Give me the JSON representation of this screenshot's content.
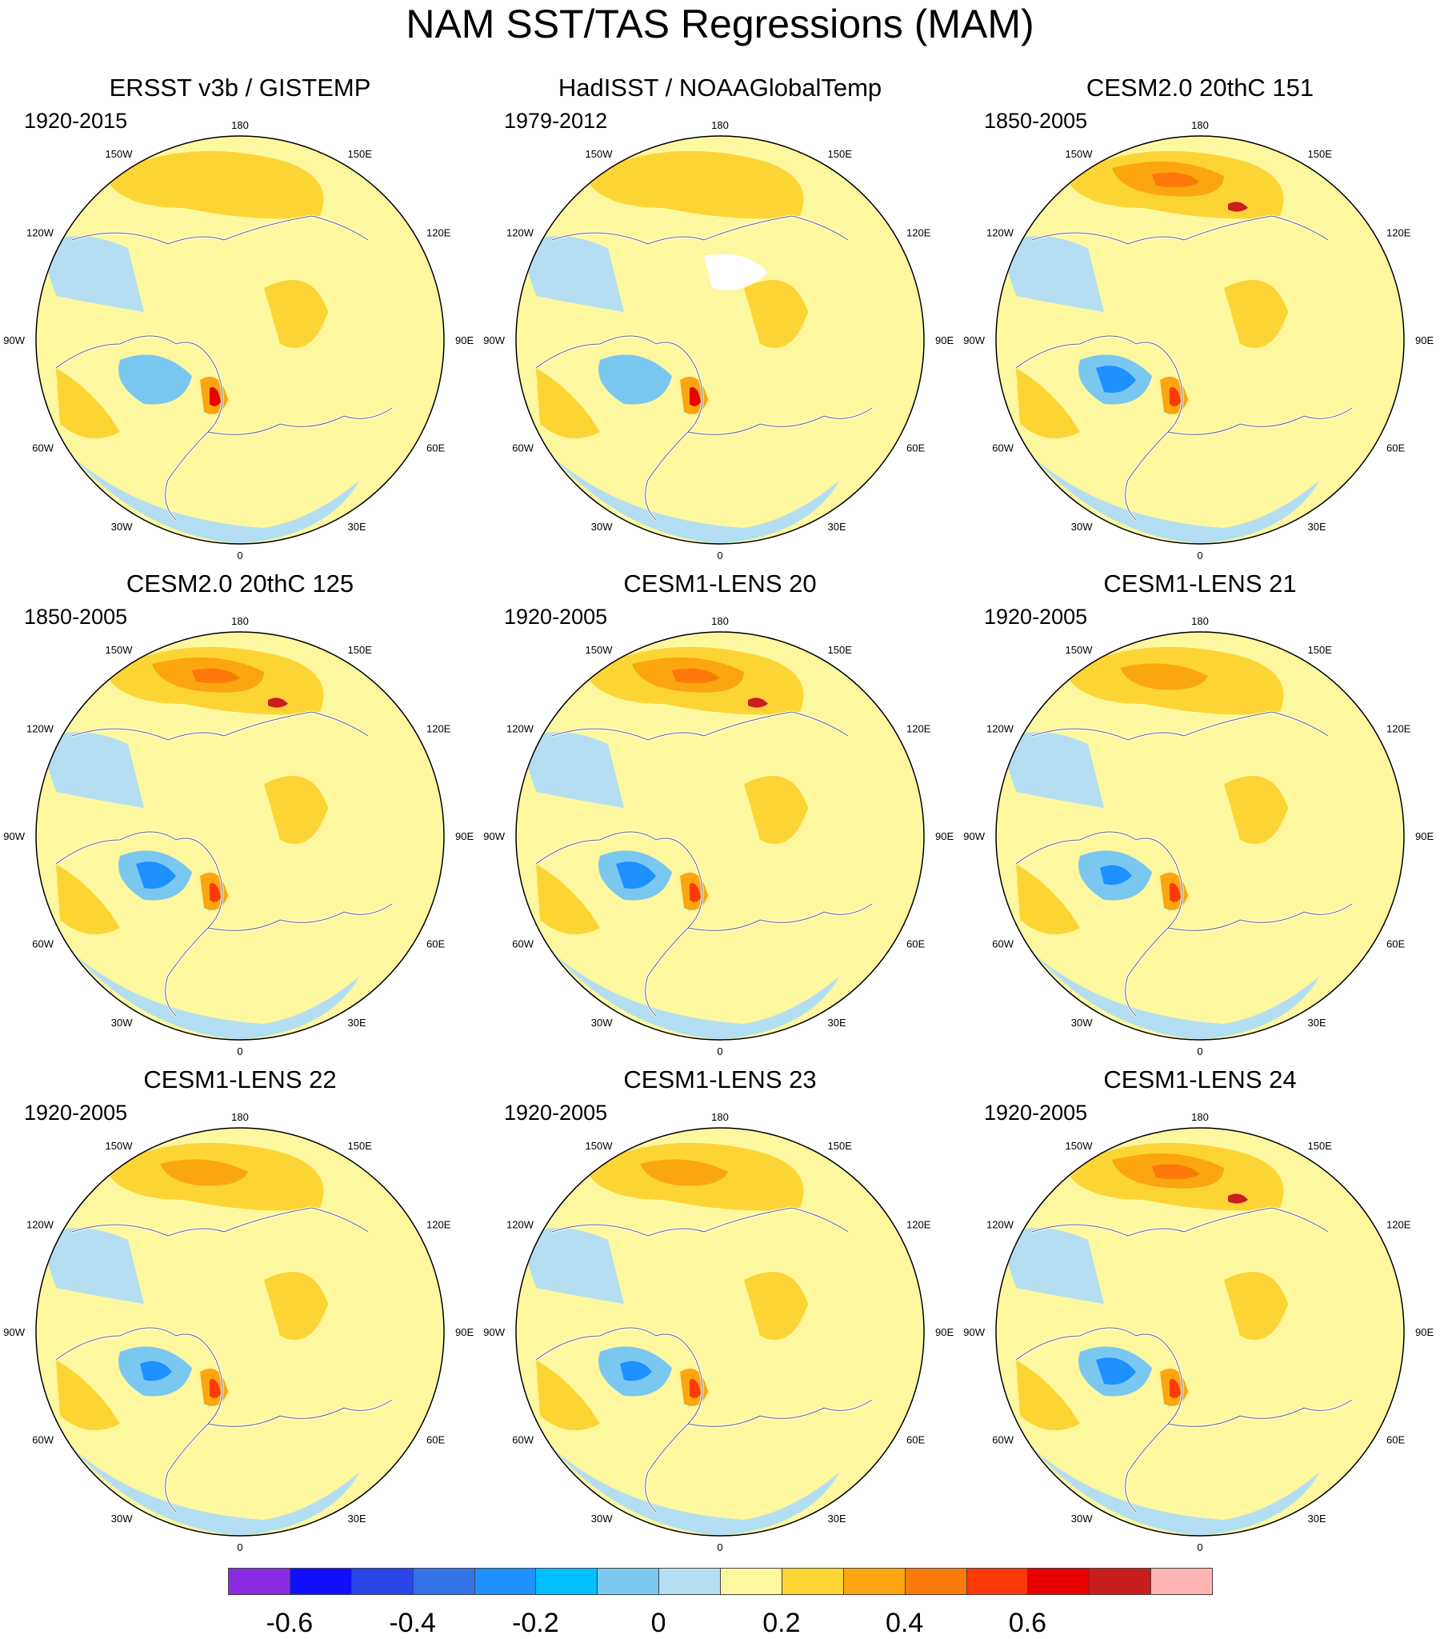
{
  "title": "NAM SST/TAS Regressions (MAM)",
  "panels": [
    {
      "title": "ERSST v3b / GISTEMP",
      "period": "1920-2015",
      "style": "obs1"
    },
    {
      "title": "HadISST / NOAAGlobalTemp",
      "period": "1979-2012",
      "style": "obs2"
    },
    {
      "title": "CESM2.0 20thC 151",
      "period": "1850-2005",
      "style": "strong"
    },
    {
      "title": "CESM2.0 20thC 125",
      "period": "1850-2005",
      "style": "strong"
    },
    {
      "title": "CESM1-LENS 20",
      "period": "1920-2005",
      "style": "strong"
    },
    {
      "title": "CESM1-LENS 21",
      "period": "1920-2005",
      "style": "medium"
    },
    {
      "title": "CESM1-LENS 22",
      "period": "1920-2005",
      "style": "medium"
    },
    {
      "title": "CESM1-LENS 23",
      "period": "1920-2005",
      "style": "medium"
    },
    {
      "title": "CESM1-LENS 24",
      "period": "1920-2005",
      "style": "strong"
    }
  ],
  "longitude_labels": [
    "180",
    "150E",
    "120E",
    "90E",
    "60E",
    "30E",
    "0",
    "30W",
    "60W",
    "90W",
    "120W",
    "150W"
  ],
  "colorbar": {
    "colors": [
      "#8a2be2",
      "#1010ff",
      "#2a45e8",
      "#3472e8",
      "#1e90ff",
      "#00bfff",
      "#7ac8f0",
      "#b4dff2",
      "#fdf8a0",
      "#fcd535",
      "#fca60f",
      "#fc7a0a",
      "#ff3a0a",
      "#e80000",
      "#c81e1e",
      "#ffb4b4"
    ],
    "tick_labels": [
      "-0.6",
      "-0.4",
      "-0.2",
      "0",
      "0.2",
      "0.4",
      "0.6"
    ]
  }
}
